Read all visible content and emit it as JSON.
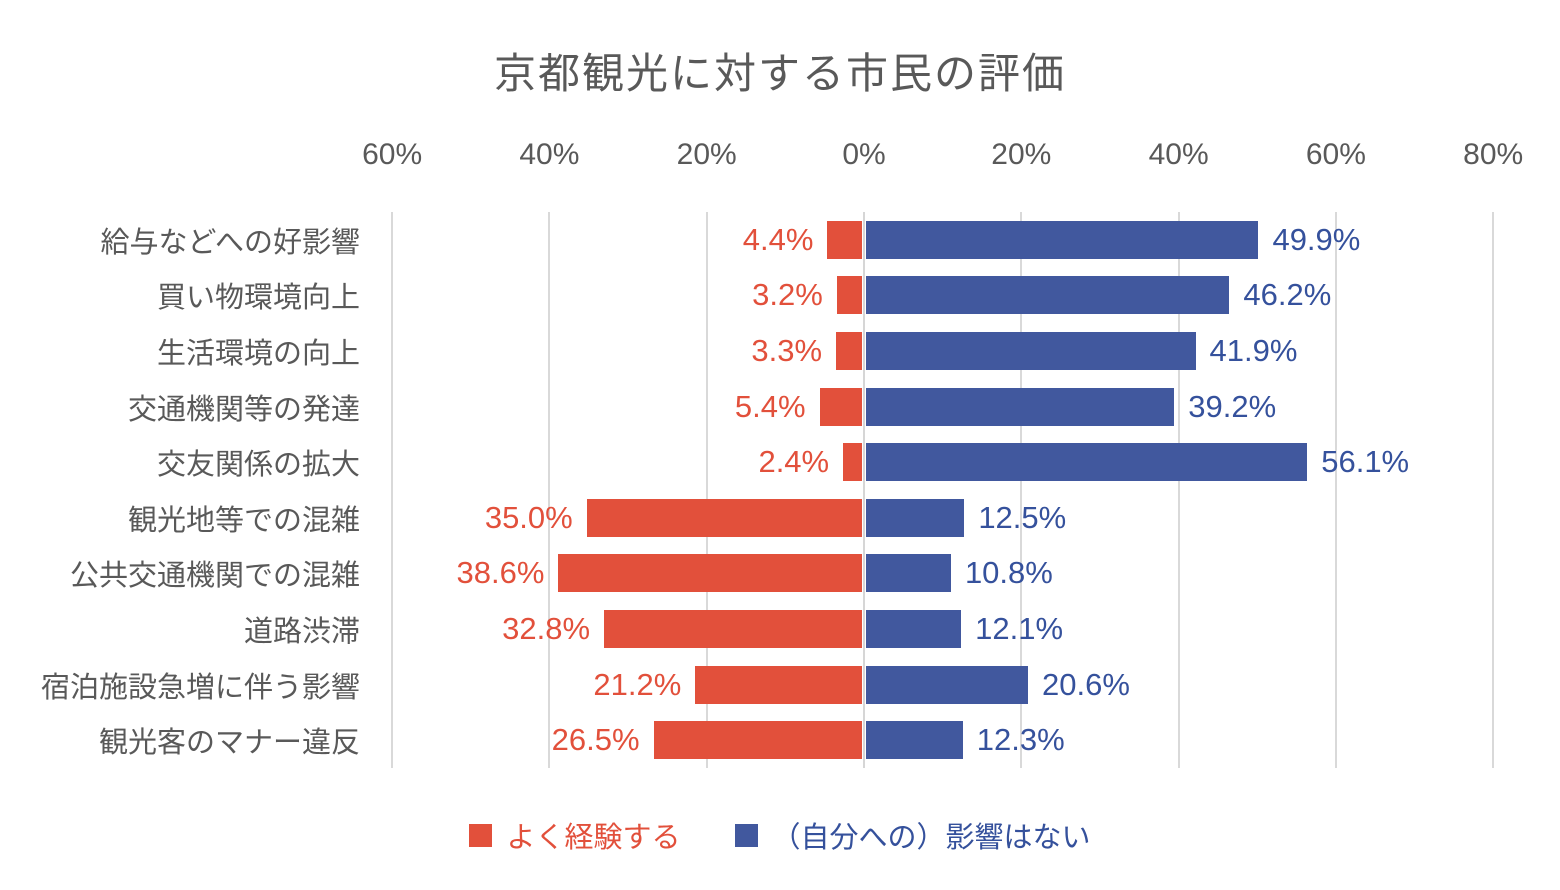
{
  "title": "京都観光に対する市民の評価",
  "chart_data": {
    "type": "bar",
    "orientation": "diverging-horizontal",
    "title": "京都観光に対する市民の評価",
    "categories": [
      "給与などへの好影響",
      "買い物環境向上",
      "生活環境の向上",
      "交通機関等の発達",
      "交友関係の拡大",
      "観光地等での混雑",
      "公共交通機関での混雑",
      "道路渋滞",
      "宿泊施設急増に伴う影響",
      "観光客のマナー違反"
    ],
    "series": [
      {
        "name": "よく経験する",
        "side": "left",
        "color": "#E2503B",
        "label_color": "#E2503B",
        "values": [
          4.4,
          3.2,
          3.3,
          5.4,
          2.4,
          35.0,
          38.6,
          32.8,
          21.2,
          26.5
        ],
        "labels": [
          "4.4%",
          "3.2%",
          "3.3%",
          "5.4%",
          "2.4%",
          "35.0%",
          "38.6%",
          "32.8%",
          "21.2%",
          "26.5%"
        ]
      },
      {
        "name": "（自分への）影響はない",
        "side": "right",
        "color": "#41589E",
        "label_color": "#35519C",
        "values": [
          49.9,
          46.2,
          41.9,
          39.2,
          56.1,
          12.5,
          10.8,
          12.1,
          20.6,
          12.3
        ],
        "labels": [
          "49.9%",
          "46.2%",
          "41.9%",
          "39.2%",
          "56.1%",
          "12.5%",
          "10.8%",
          "12.1%",
          "20.6%",
          "12.3%"
        ]
      }
    ],
    "x_axis": {
      "tick_labels": [
        "60%",
        "40%",
        "20%",
        "0%",
        "20%",
        "40%",
        "60%",
        "80%"
      ],
      "tick_values": [
        -60,
        -40,
        -20,
        0,
        20,
        40,
        60,
        80
      ],
      "range": [
        -60,
        80
      ],
      "grid": true
    },
    "legend_position": "bottom",
    "text_color": "#595959",
    "gridline_color": "#D9D9D9",
    "background_color": "#FFFFFF"
  }
}
